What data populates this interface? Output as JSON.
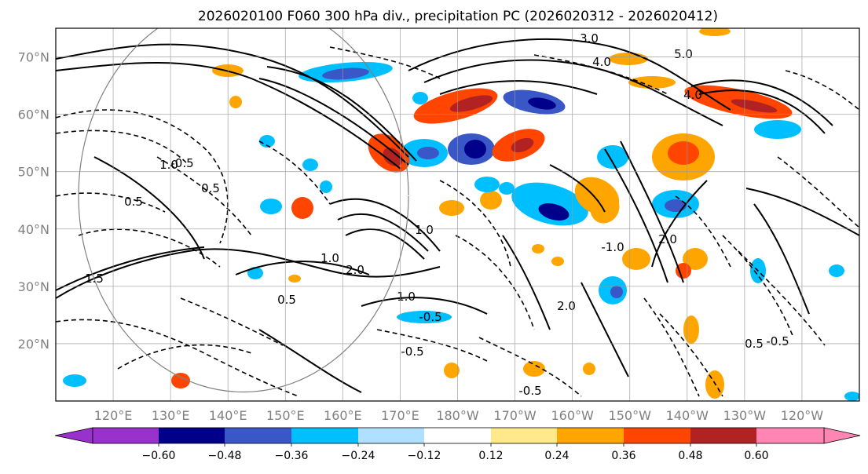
{
  "chart_data": {
    "type": "heatmap",
    "title": "2026020100 F060 300 hPa div., precipitation PC (2026020312 - 2026020412)",
    "lat_ticks": [
      "70°N",
      "60°N",
      "50°N",
      "40°N",
      "30°N",
      "20°N"
    ],
    "lat_values": [
      70,
      60,
      50,
      40,
      30,
      20
    ],
    "lon_ticks": [
      "120°E",
      "130°E",
      "140°E",
      "150°E",
      "160°E",
      "170°E",
      "180°W",
      "170°W",
      "160°W",
      "150°W",
      "140°W",
      "130°W",
      "120°W"
    ],
    "lon_values": [
      120,
      130,
      140,
      150,
      160,
      170,
      180,
      190,
      200,
      210,
      220,
      230,
      240
    ],
    "lat_range": [
      10,
      75
    ],
    "lon_range": [
      110,
      250
    ],
    "colorbar": {
      "boundaries": [
        -0.72,
        -0.6,
        -0.48,
        -0.36,
        -0.24,
        -0.12,
        0.12,
        0.24,
        0.36,
        0.48,
        0.6,
        0.72
      ],
      "tick_labels": [
        "−0.60",
        "−0.48",
        "−0.36",
        "−0.24",
        "−0.12",
        "0.12",
        "0.24",
        "0.36",
        "0.48",
        "0.60"
      ],
      "tick_values": [
        -0.6,
        -0.48,
        -0.36,
        -0.24,
        -0.12,
        0.12,
        0.24,
        0.36,
        0.48,
        0.6
      ],
      "colors": [
        "#9932cc",
        "#00008b",
        "#3a57c8",
        "#00bfff",
        "#b0e0ff",
        "#ffffff",
        "#ffe98a",
        "#ffa500",
        "#ff4500",
        "#b22222",
        "#ff86b3"
      ],
      "extend_low_color": "#9932cc",
      "extend_high_color": "#ff86b3"
    },
    "contour_labels": [
      "3.0",
      "4.0",
      "5.0",
      "4.0",
      "2.0",
      "1.0",
      "0.5",
      "-0.5",
      "1.5",
      "2.0",
      "1.0",
      "0.5",
      "-0.5",
      "0.5",
      "-0.5",
      "1.0",
      "-1.0",
      "2.0",
      "-0.5",
      "0.5",
      "-0.5",
      "1.0"
    ]
  }
}
